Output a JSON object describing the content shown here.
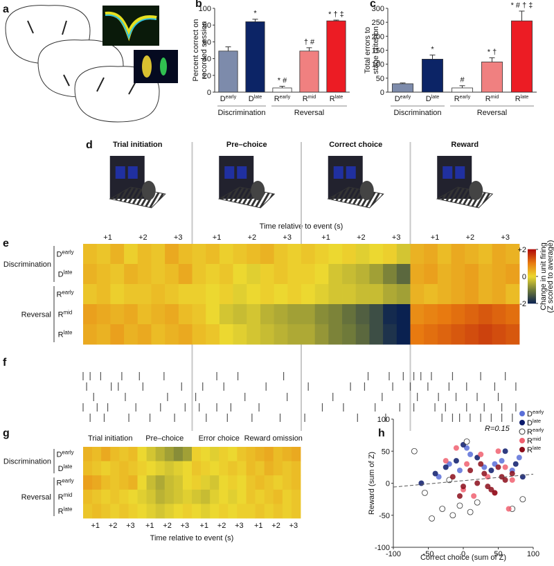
{
  "panel_labels": [
    "a",
    "b",
    "c",
    "d",
    "e",
    "f",
    "g",
    "h"
  ],
  "chart_data": [
    {
      "type": "bar",
      "ylabel_lines": [
        "Percent correct on",
        "recorded session"
      ],
      "categories": [
        "D",
        "D",
        "R",
        "R",
        "R"
      ],
      "category_sups": [
        "early",
        "late",
        "early",
        "mid",
        "late"
      ],
      "groups": [
        "Discrimination",
        "Reversal"
      ],
      "values": [
        49,
        84,
        5,
        49,
        85
      ],
      "errors": [
        5,
        3,
        2,
        4,
        1
      ],
      "colors": [
        "#7d8bab",
        "#0c2466",
        "#ffffff",
        "#f08080",
        "#ec1c24"
      ],
      "annotations": [
        null,
        "*",
        "* #",
        "† #",
        "* † ‡"
      ],
      "ylim": [
        0,
        100
      ],
      "yticks": [
        0,
        20,
        40,
        60,
        80,
        100
      ]
    },
    {
      "type": "bar",
      "ylabel_lines": [
        "Total errors to",
        "stage criterion"
      ],
      "categories": [
        "D",
        "D",
        "R",
        "R",
        "R"
      ],
      "category_sups": [
        "early",
        "late",
        "early",
        "mid",
        "late"
      ],
      "groups": [
        "Discrimination",
        "Reversal"
      ],
      "values": [
        30,
        118,
        15,
        108,
        255
      ],
      "errors": [
        3,
        15,
        8,
        15,
        35
      ],
      "colors": [
        "#7d8bab",
        "#0c2466",
        "#ffffff",
        "#f08080",
        "#ec1c24"
      ],
      "annotations": [
        null,
        "*",
        "#",
        "* †",
        "* # † ‡"
      ],
      "ylim": [
        0,
        300
      ],
      "yticks": [
        0,
        50,
        100,
        150,
        200,
        250,
        300
      ]
    },
    {
      "type": "scatter",
      "xlabel": "Correct choice (sum of Z)",
      "ylabel": "Reward (sum of Z)",
      "annotation": "R=0.15",
      "xlim": [
        -100,
        100
      ],
      "xticks": [
        -100,
        -50,
        0,
        50,
        100
      ],
      "ylim": [
        -100,
        100
      ],
      "yticks": [
        -100,
        -50,
        0,
        50,
        100
      ],
      "legend": "upper right",
      "trend_line": {
        "x": [
          -100,
          100
        ],
        "y": [
          -6,
          14
        ]
      },
      "series": [
        {
          "name": "D",
          "name_sup": "early",
          "color": "#5a6fd8",
          "x": [
            -20,
            -5,
            10,
            30,
            55,
            70,
            -35,
            5,
            45,
            80
          ],
          "values": [
            30,
            20,
            45,
            25,
            35,
            20,
            10,
            55,
            30,
            40
          ]
        },
        {
          "name": "D",
          "name_sup": "late",
          "color": "#0b1a6b",
          "x": [
            -60,
            -40,
            -10,
            0,
            20,
            40,
            60,
            75,
            -25,
            85
          ],
          "values": [
            0,
            15,
            35,
            60,
            40,
            20,
            50,
            30,
            25,
            10
          ]
        },
        {
          "name": "R",
          "name_sup": "early",
          "color": "#ffffff",
          "x": [
            -70,
            -55,
            -30,
            -15,
            -5,
            5,
            20,
            70,
            85,
            -45,
            10,
            -20
          ],
          "values": [
            50,
            -15,
            -40,
            -50,
            -35,
            65,
            -30,
            -40,
            -25,
            -55,
            -45,
            5
          ]
        },
        {
          "name": "R",
          "name_sup": "mid",
          "color": "#f06070",
          "x": [
            -10,
            5,
            15,
            25,
            35,
            45,
            60,
            70,
            -25,
            50,
            65,
            0
          ],
          "values": [
            55,
            30,
            -20,
            45,
            10,
            -15,
            25,
            5,
            35,
            50,
            -40,
            -10
          ]
        },
        {
          "name": "R",
          "name_sup": "late",
          "color": "#8b0d1a",
          "x": [
            -15,
            0,
            10,
            20,
            30,
            40,
            50,
            60,
            70,
            -5,
            25,
            45,
            55,
            35
          ],
          "values": [
            10,
            -5,
            20,
            0,
            15,
            -10,
            25,
            5,
            15,
            -20,
            30,
            -15,
            10,
            -5
          ]
        }
      ]
    }
  ],
  "panel_d": {
    "events": [
      "Trial initiation",
      "Pre–choice",
      "Correct choice",
      "Reward"
    ],
    "xlabel": "Time relative to event (s)"
  },
  "panel_e": {
    "type": "heatmap",
    "epoch_xlim": [
      0.3,
      3.4
    ],
    "xticks": [
      {
        "value": 1,
        "label": "+1"
      },
      {
        "value": 2,
        "label": "+2"
      },
      {
        "value": 3,
        "label": "+3"
      }
    ],
    "groups": [
      "Discrimination",
      "Reversal"
    ],
    "row_labels": [
      "D",
      "D",
      "R",
      "R",
      "R"
    ],
    "row_sups": [
      "early",
      "late",
      "early",
      "mid",
      "late"
    ],
    "values": [
      [
        0.3,
        0.2,
        0.4,
        0.1,
        0.3,
        0.2,
        0.5,
        0.3,
        0.2,
        0.3,
        0.1,
        0.2,
        0.3,
        0.4,
        0.2,
        0.1,
        0.2,
        0.1,
        0,
        0.1,
        -0.1,
        0,
        0.1,
        -0.2,
        0.4,
        0.5,
        0.3,
        0.5,
        0.4,
        0.3,
        0.5,
        0.4
      ],
      [
        0.4,
        0.3,
        0.2,
        0.4,
        0.3,
        0.2,
        0.3,
        0.5,
        0.2,
        0.1,
        0.2,
        0,
        -0.1,
        0.1,
        0.2,
        0.1,
        0.1,
        0,
        -0.2,
        -0.3,
        -0.4,
        -0.6,
        -0.9,
        -1.2,
        0.5,
        0.6,
        0.4,
        0.5,
        0.6,
        0.4,
        0.5,
        0.6
      ],
      [
        0.2,
        0.3,
        0.1,
        0.2,
        0.2,
        0.3,
        0.2,
        0.1,
        0.1,
        0,
        0.1,
        -0.1,
        0,
        0.1,
        0,
        0.1,
        0,
        -0.1,
        -0.2,
        -0.2,
        -0.3,
        -0.3,
        -0.5,
        -0.6,
        0.4,
        0.3,
        0.4,
        0.5,
        0.6,
        0.4,
        0.5,
        0.3
      ],
      [
        0.6,
        0.5,
        0.4,
        0.5,
        0.3,
        0.4,
        0.5,
        0.3,
        0.2,
        0,
        -0.2,
        -0.3,
        -0.2,
        -0.4,
        -0.5,
        -0.6,
        -0.6,
        -0.8,
        -0.9,
        -1.1,
        -1.3,
        -1.5,
        -1.9,
        -2,
        0.8,
        0.9,
        1,
        1.1,
        1.2,
        1.3,
        1.2,
        1.1
      ],
      [
        0.5,
        0.4,
        0.6,
        0.4,
        0.5,
        0.3,
        0.4,
        0.5,
        0.3,
        0.2,
        0,
        -0.1,
        -0.2,
        -0.3,
        -0.4,
        -0.5,
        -0.5,
        -0.7,
        -0.9,
        -1,
        -1.2,
        -1.5,
        -1.8,
        -2,
        1,
        1.1,
        1.2,
        1.3,
        1.4,
        1.5,
        1.4,
        1.3
      ]
    ],
    "colorbar": {
      "label_lines": [
        "Change in unit firing",
        "(Z scored to average)"
      ],
      "lim": [
        -2,
        2
      ],
      "ticks": [
        {
          "value": 2,
          "label": "+2"
        },
        0,
        -2
      ]
    }
  },
  "panel_f": {
    "type": "raster",
    "epoch_xlim": [
      0.3,
      3.4
    ],
    "rows": [
      [
        [
          0.3,
          0.5,
          0.8,
          1.4,
          1.9,
          2.6
        ],
        [
          1.0,
          1.6,
          2.9
        ],
        [
          2.2,
          2.8,
          3.2
        ],
        [
          0.4,
          0.6,
          0.9,
          1.5,
          2.3,
          3.0
        ]
      ],
      [
        [
          0.4,
          1.1,
          1.3,
          2.0,
          3.1
        ],
        [
          0.6,
          1.2,
          2.4
        ],
        [
          0.5,
          1.7,
          2.1,
          2.9
        ],
        [
          0.3,
          0.8,
          1.4,
          1.9,
          2.7,
          3.3
        ]
      ],
      [
        [
          0.6,
          1.5,
          2.7
        ],
        [
          0.4,
          1.8,
          3.0
        ],
        [
          1.2,
          2.6
        ],
        [
          0.5,
          1.1,
          1.6,
          2.2,
          2.8
        ]
      ],
      [
        [
          0.3,
          0.7,
          1.0,
          1.8,
          2.5,
          3.2
        ],
        [
          0.5,
          1.0,
          1.4,
          2.2
        ],
        [
          0.9,
          1.5,
          2.4,
          3.1
        ],
        [
          0.4,
          1.0,
          1.3,
          1.9,
          2.4,
          2.9,
          3.3
        ]
      ],
      [
        [
          0.5,
          0.9,
          1.6,
          2.2,
          2.9
        ],
        [
          0.7,
          1.3,
          2.0,
          2.8
        ],
        [
          0.4,
          1.9,
          2.7
        ],
        [
          1.2,
          1.5,
          1.7,
          2.0,
          2.3,
          2.6,
          2.9,
          3.2
        ]
      ]
    ]
  },
  "panel_g": {
    "type": "heatmap",
    "events": [
      "Trial initiation",
      "Pre–choice",
      "Error choice",
      "Reward omission"
    ],
    "epoch_xlim": [
      0.3,
      3.4
    ],
    "xticks": [
      {
        "value": 1,
        "label": "+1"
      },
      {
        "value": 2,
        "label": "+2"
      },
      {
        "value": 3,
        "label": "+3"
      }
    ],
    "xlabel": "Time relative to event (s)",
    "groups": [
      "Discrimination",
      "Reversal"
    ],
    "row_labels": [
      "D",
      "D",
      "R",
      "R",
      "R"
    ],
    "row_sups": [
      "early",
      "late",
      "early",
      "mid",
      "late"
    ],
    "values": [
      [
        0.4,
        0.3,
        0.5,
        0.3,
        0.2,
        0.3,
        0,
        -0.2,
        -0.4,
        -0.6,
        -0.8,
        -0.6,
        0.1,
        0,
        -0.1,
        0.1,
        0,
        0.2,
        0.3,
        0.4,
        0.5,
        0.3,
        0.4,
        0.5
      ],
      [
        0.3,
        0.2,
        0.1,
        0.2,
        0.3,
        0.2,
        0.1,
        0,
        -0.1,
        -0.2,
        -0.1,
        0,
        0.2,
        0.1,
        0,
        0.1,
        0.2,
        0.1,
        0.3,
        0.2,
        0.4,
        0.3,
        0.2,
        0.3
      ],
      [
        0.6,
        0.5,
        0.3,
        0.2,
        0.3,
        0.4,
        0,
        -0.3,
        -0.5,
        -0.3,
        -0.2,
        0,
        0.1,
        -0.1,
        -0.2,
        0,
        0.1,
        0,
        0.2,
        0.3,
        0.2,
        0.1,
        0.2,
        0.3
      ],
      [
        0.3,
        0.2,
        0.1,
        0.2,
        0.1,
        0,
        -0.1,
        -0.2,
        -0.4,
        -0.3,
        -0.2,
        -0.1,
        -0.2,
        -0.3,
        -0.1,
        0,
        -0.1,
        0,
        0.2,
        0.1,
        0.2,
        0.3,
        0.1,
        0.2
      ],
      [
        0.2,
        0.3,
        0.2,
        0.1,
        0.2,
        0.1,
        0,
        -0.1,
        -0.2,
        -0.1,
        0,
        0.1,
        0,
        -0.1,
        0,
        0.1,
        0,
        0.1,
        0.1,
        0.2,
        0.1,
        0.2,
        0.1,
        0.2
      ]
    ]
  }
}
